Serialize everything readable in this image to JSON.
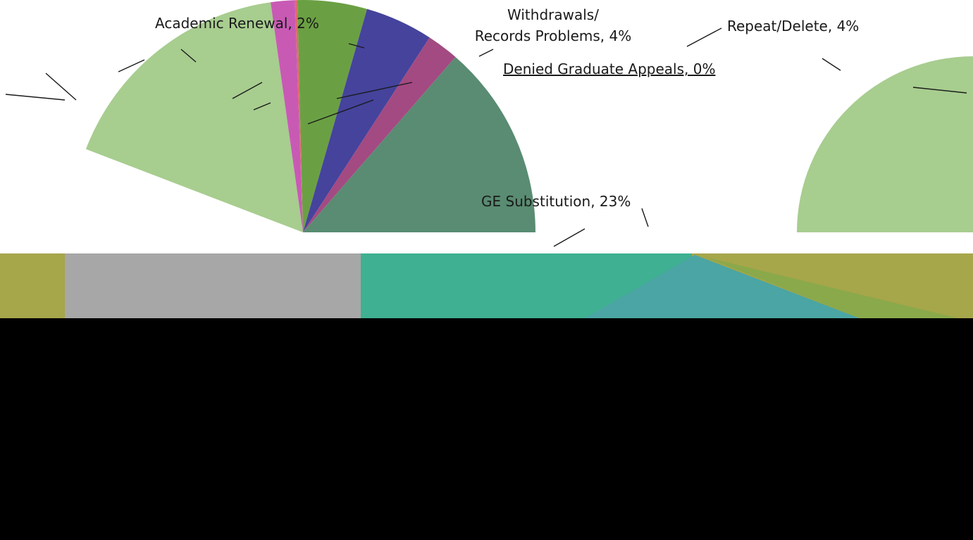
{
  "chart_data": {
    "type": "pie",
    "labeled_slices": [
      {
        "label": "Academic Renewal, 2%",
        "value": 2,
        "color": "#c85ab4"
      },
      {
        "label": "Withdrawals/",
        "label2": "Records Problems, 4%",
        "value": 4,
        "color": "#45439c"
      },
      {
        "label": "Repeat/Delete, 4%",
        "value": 4,
        "color": "#a34a82"
      },
      {
        "label": "Denied Graduate Appeals, 0%",
        "value": 0,
        "color": "#6aa043"
      },
      {
        "label": "GE Substitution, 23%",
        "value": 23,
        "color": "#3fb091"
      }
    ],
    "slice_colors": [
      "#a7cd8f",
      "#c85ab4",
      "#e06a6a",
      "#6aa043",
      "#45439c",
      "#a34a82",
      "#598c72",
      "#3fb091",
      "#4aa5a4",
      "#a6a64a",
      "#8aa94a",
      "#1f3a2c"
    ]
  }
}
